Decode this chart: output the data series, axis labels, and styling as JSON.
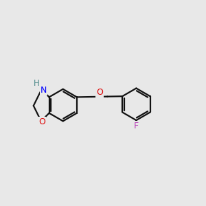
{
  "background_color": "#e8e8e8",
  "bond_color": "#111111",
  "N_color": "#0000ff",
  "O_color": "#dd0000",
  "F_color": "#bb44bb",
  "H_color": "#4a8888",
  "line_width": 1.6,
  "figsize": [
    3.0,
    3.0
  ],
  "dpi": 100,
  "xlim": [
    0.2,
    5.0
  ],
  "ylim": [
    0.5,
    3.2
  ]
}
